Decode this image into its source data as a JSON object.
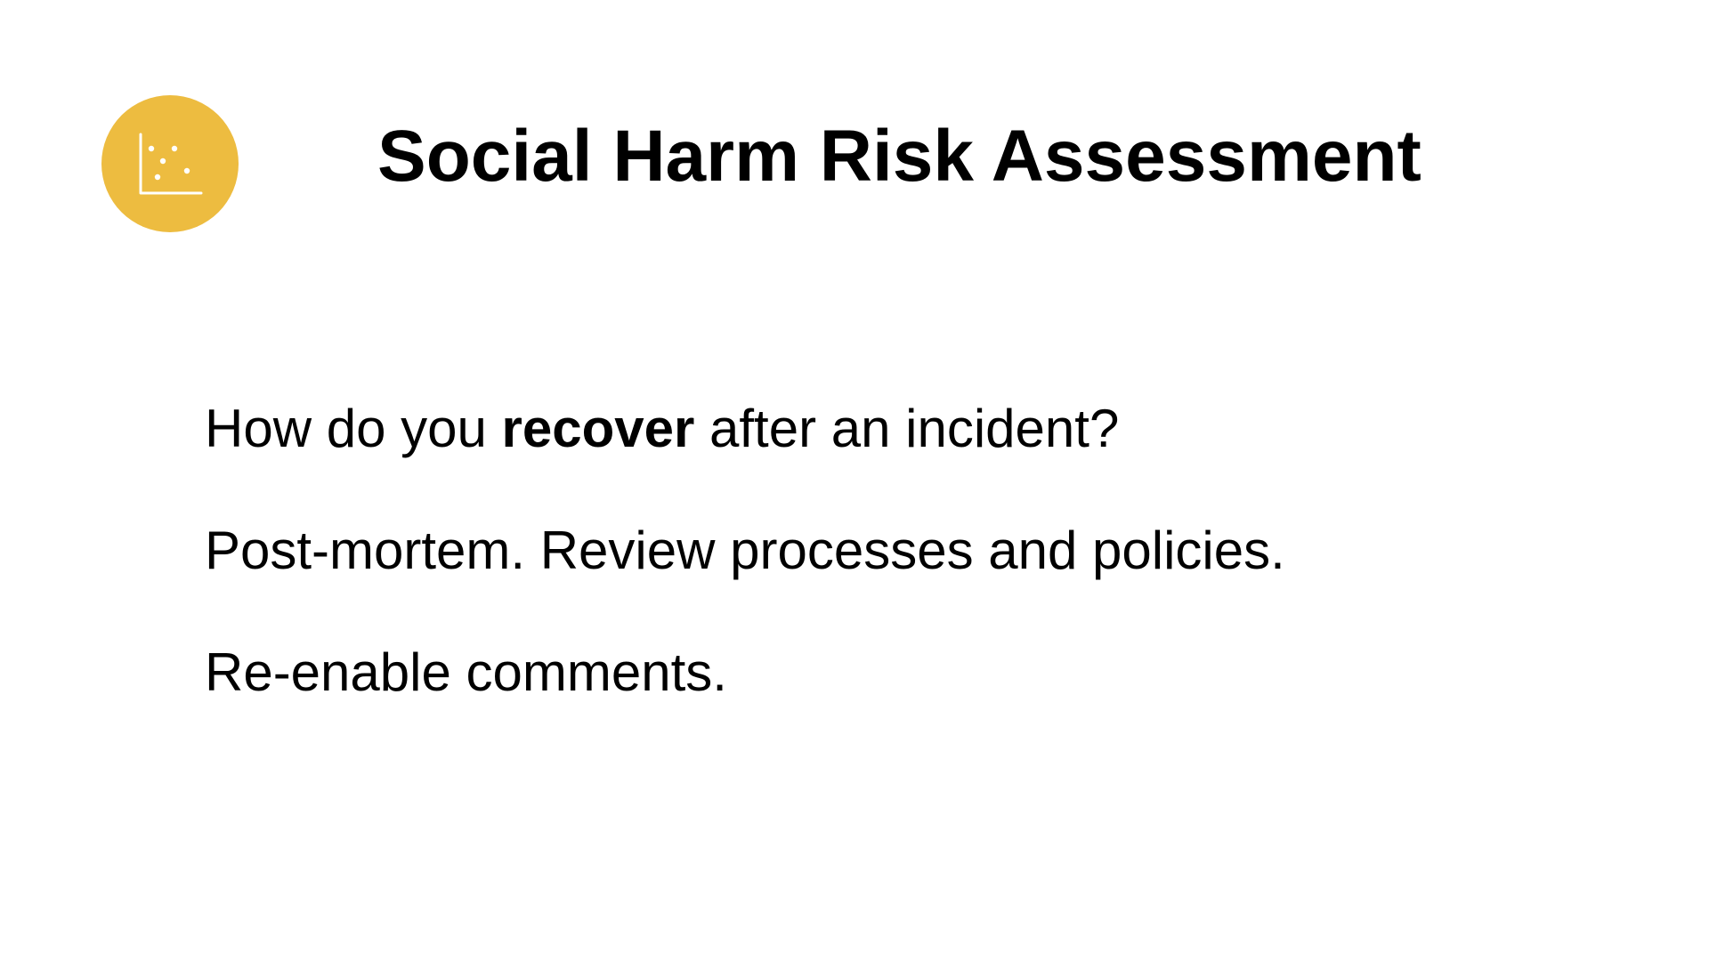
{
  "slide": {
    "logo_icon": "scatter-plot-icon",
    "accent_color": "#EDBC40",
    "title": "Social Harm Risk Assessment",
    "line1": {
      "before": "How do you ",
      "emphasis": "recover",
      "after": " after an incident?"
    },
    "line2": "Post-mortem. Review processes and policies.",
    "line3": "Re-enable comments."
  }
}
